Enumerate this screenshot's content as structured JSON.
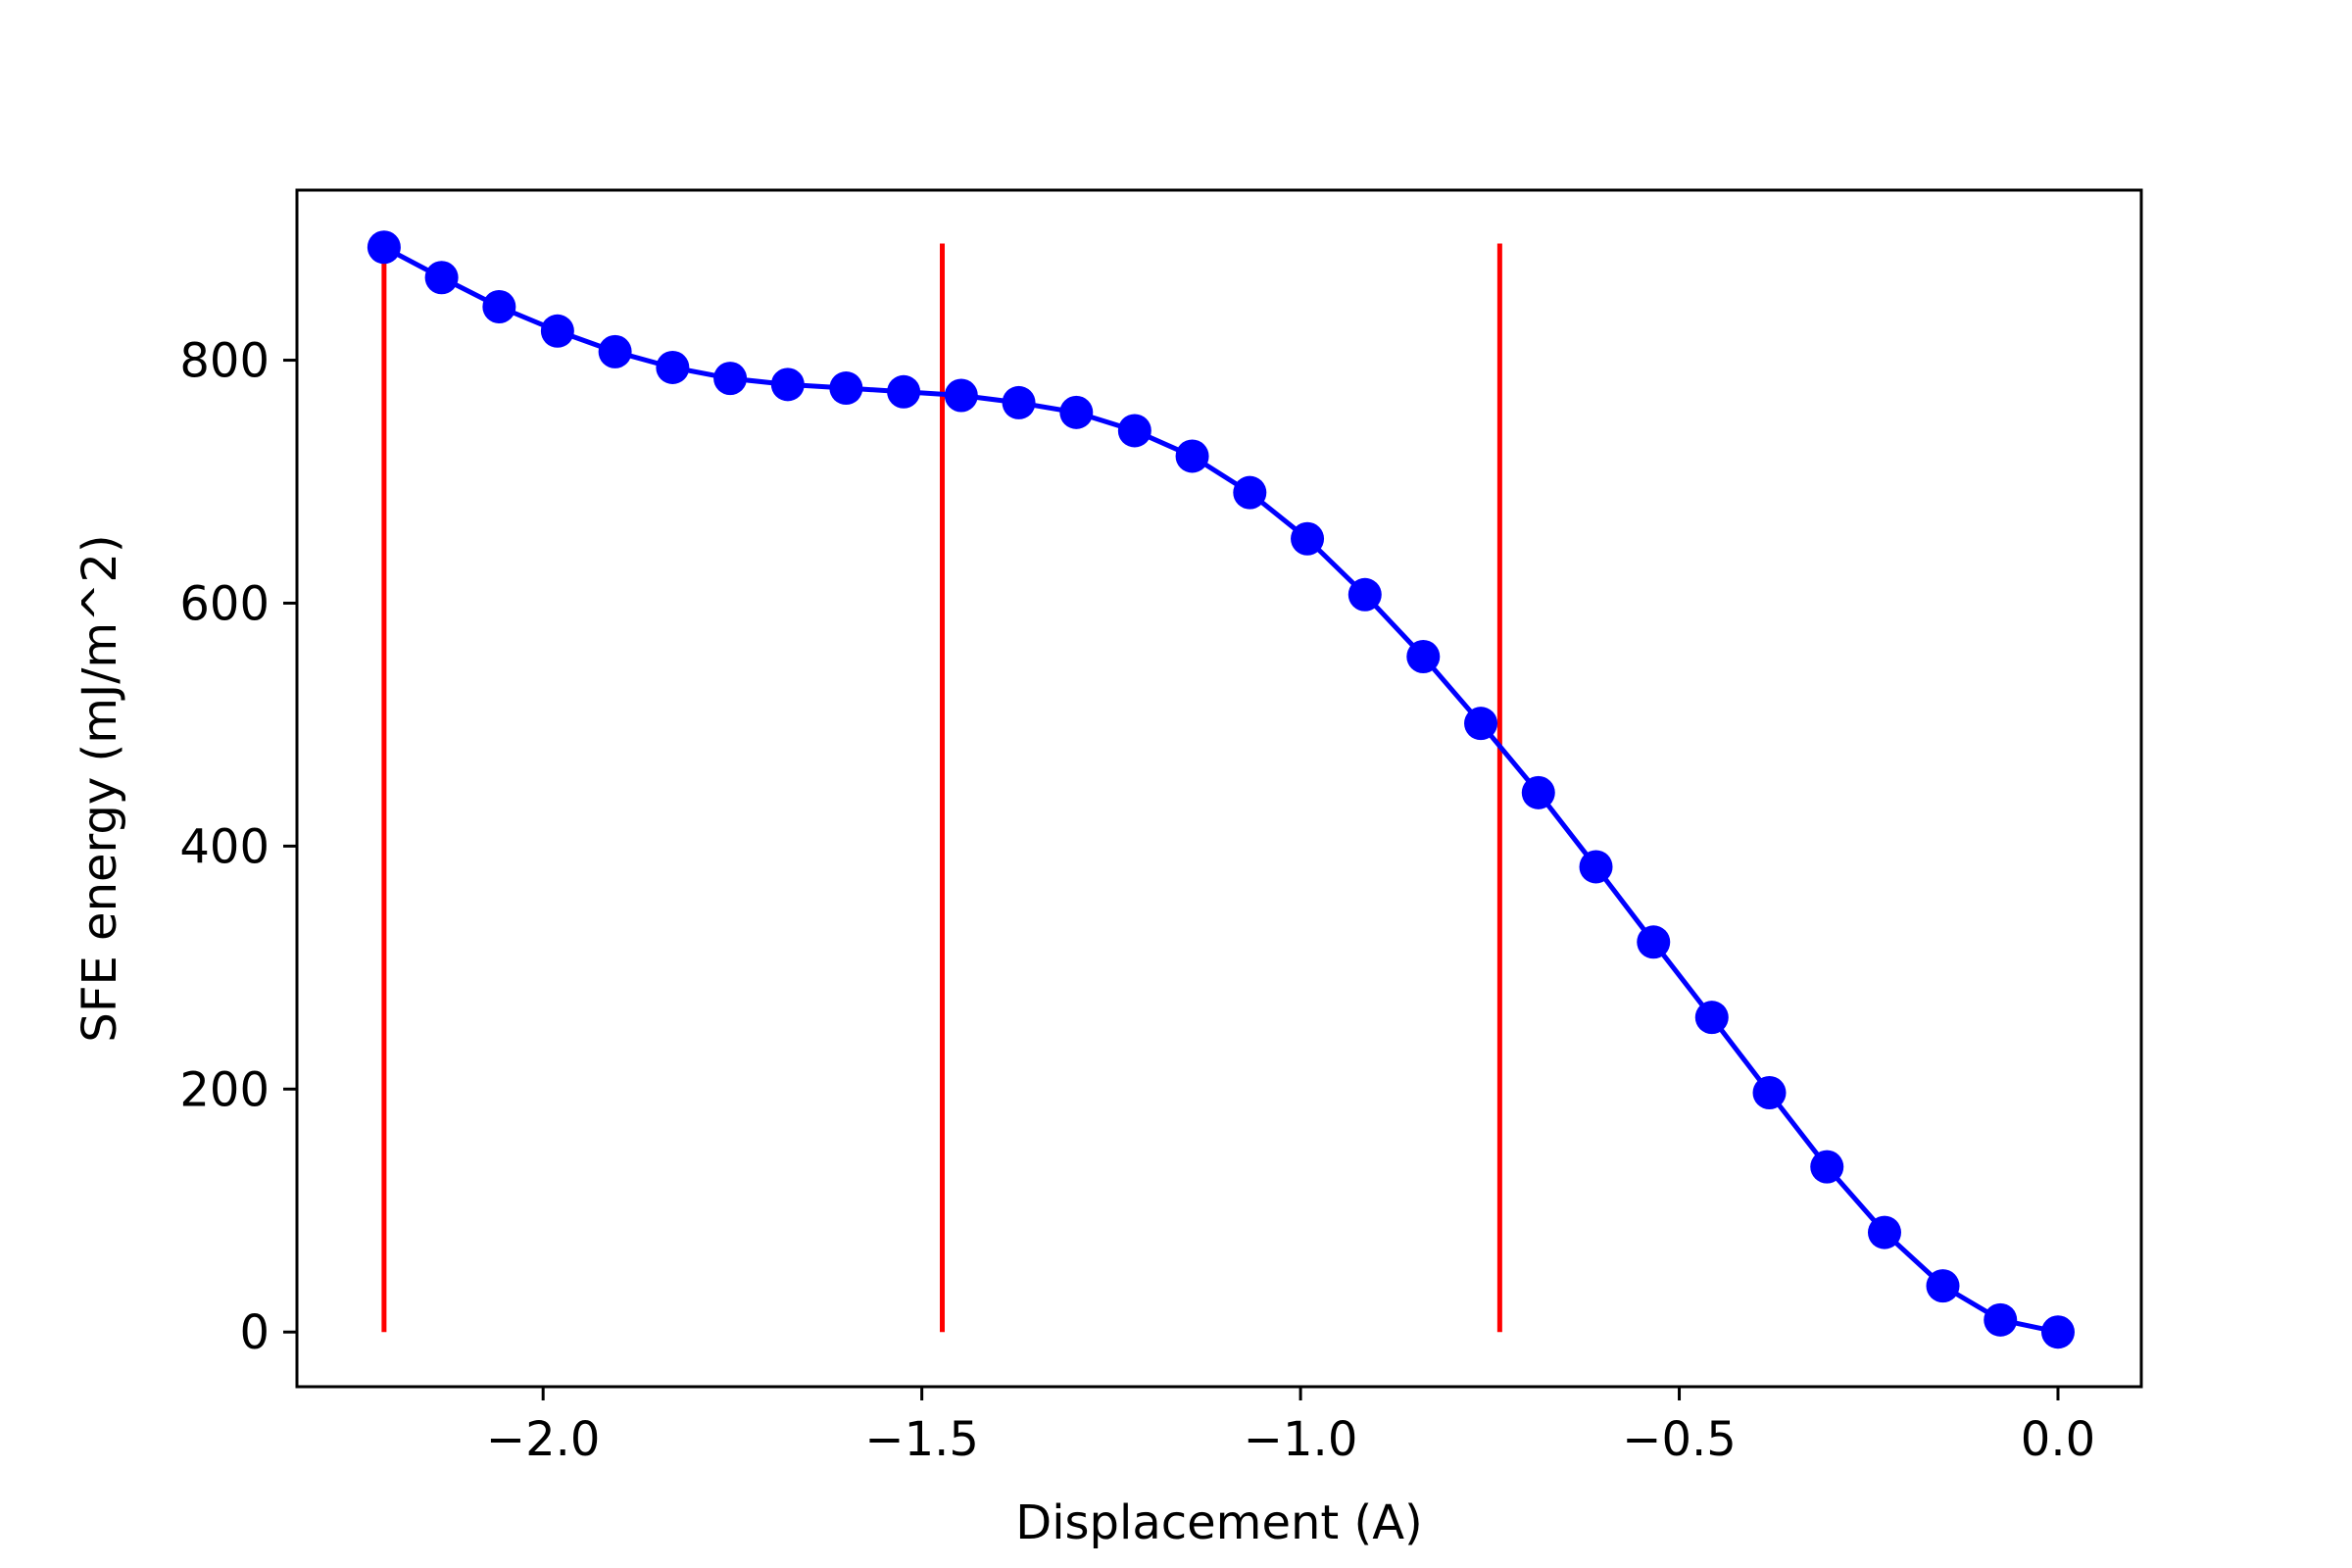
{
  "chart_data": {
    "type": "line",
    "title": "",
    "xlabel": "Displacement (A)",
    "ylabel": "SFE energy (mJ/m^2)",
    "xlim": [
      -2.325,
      0.11
    ],
    "ylim": [
      -45,
      940
    ],
    "x_ticks": [
      -2.0,
      -1.5,
      -1.0,
      -0.5,
      0.0
    ],
    "x_tick_labels": [
      "−2.0",
      "−1.5",
      "−1.0",
      "−0.5",
      "0.0"
    ],
    "y_ticks": [
      0,
      200,
      400,
      600,
      800
    ],
    "y_tick_labels": [
      "0",
      "200",
      "400",
      "600",
      "800"
    ],
    "grid": false,
    "series": [
      {
        "color": "#0000ff",
        "marker": "circle",
        "x": [
          -2.21,
          -2.134,
          -2.058,
          -1.981,
          -1.905,
          -1.829,
          -1.753,
          -1.677,
          -1.6,
          -1.524,
          -1.448,
          -1.372,
          -1.296,
          -1.219,
          -1.143,
          -1.067,
          -0.991,
          -0.915,
          -0.838,
          -0.762,
          -0.686,
          -0.61,
          -0.534,
          -0.457,
          -0.381,
          -0.305,
          -0.229,
          -0.152,
          -0.076,
          0.0
        ],
        "y": [
          893,
          868,
          844,
          824,
          807,
          794,
          785,
          780,
          777,
          774,
          771,
          765,
          757,
          742,
          721,
          691,
          653,
          607,
          556,
          501,
          444,
          383,
          321,
          259,
          197,
          136,
          82,
          38,
          10,
          0
        ]
      }
    ],
    "vlines": {
      "color": "#ff0000",
      "x": [
        -2.21,
        -1.473,
        -0.737
      ],
      "ymin": 0,
      "ymax": 896
    }
  }
}
